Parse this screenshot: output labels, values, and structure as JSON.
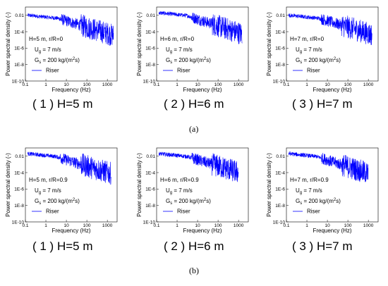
{
  "figure": {
    "part_a": "(a)",
    "part_b": "(b)"
  },
  "chart_data": [
    {
      "type": "line",
      "caption": "( 1 ) H=5 m",
      "xlabel": "Frequency (Hz)",
      "ylabel": "Power spectral density (-)",
      "xscale": "log",
      "yscale": "log",
      "xlim": [
        0.1,
        3000
      ],
      "ylim": [
        1e-10,
        0.1
      ],
      "yticks": [
        "0.01",
        "1E-4",
        "1E-6",
        "1E-8",
        "1E-10"
      ],
      "xticks": [
        "0.1",
        "1",
        "10",
        "100",
        "1000"
      ],
      "annotations": [
        "H=5 m, r/R=0",
        "U",
        "g",
        " = 7 m/s",
        "G",
        "s",
        " = 200 kg/(m",
        "2",
        "s)"
      ],
      "legend": "Riser",
      "series": [
        {
          "name": "Riser",
          "color": "#0000ff",
          "shape": {
            "f_low": [
              0.13,
              3
            ],
            "p_low": 0.01,
            "roll_off_hz": 4,
            "slope": -1.4,
            "p_end": 1e-07,
            "f_max": 2000
          }
        }
      ]
    },
    {
      "type": "line",
      "caption": "( 2 ) H=6 m",
      "xlabel": "Frequency (Hz)",
      "ylabel": "Power spectral density (-)",
      "xscale": "log",
      "yscale": "log",
      "xlim": [
        0.1,
        3000
      ],
      "ylim": [
        1e-10,
        0.1
      ],
      "yticks": [
        "0.01",
        "1E-4",
        "1E-6",
        "1E-8",
        "1E-10"
      ],
      "xticks": [
        "0.1",
        "1",
        "10",
        "100",
        "1000"
      ],
      "annotations": [
        "H=6 m, r/R=0",
        "U",
        "g",
        " = 7 m/s",
        "G",
        "s",
        " = 200 kg/(m",
        "2",
        "s)"
      ],
      "legend": "Riser",
      "series": [
        {
          "name": "Riser",
          "color": "#0000ff",
          "shape": {
            "f_low": [
              0.13,
              3
            ],
            "p_low": 0.02,
            "roll_off_hz": 3,
            "slope": -1.5,
            "p_end": 2e-07,
            "f_max": 1500
          }
        }
      ]
    },
    {
      "type": "line",
      "caption": "( 3 ) H=7 m",
      "xlabel": "Frequency (Hz)",
      "ylabel": "Power spectral density (-)",
      "xscale": "log",
      "yscale": "log",
      "xlim": [
        0.1,
        3000
      ],
      "ylim": [
        1e-10,
        0.1
      ],
      "yticks": [
        "0.01",
        "1E-4",
        "1E-6",
        "1E-8",
        "1E-10"
      ],
      "xticks": [
        "0.1",
        "1",
        "10",
        "100",
        "1000"
      ],
      "annotations": [
        "H=7 m, r/R=0",
        "U",
        "g",
        " = 7 m/s",
        "G",
        "s",
        " = 200 kg/(m",
        "2",
        "s)"
      ],
      "legend": "Riser",
      "series": [
        {
          "name": "Riser",
          "color": "#0000ff",
          "shape": {
            "f_low": [
              0.5,
              3
            ],
            "p_low": 0.01,
            "roll_off_hz": 4,
            "slope": -1.4,
            "p_end": 5e-07,
            "f_max": 1500
          }
        }
      ]
    },
    {
      "type": "line",
      "caption": "( 1 ) H=5 m",
      "xlabel": "Frequency (Hz)",
      "ylabel": "Power spectral density (-)",
      "xscale": "log",
      "yscale": "log",
      "xlim": [
        0.1,
        3000
      ],
      "ylim": [
        1e-10,
        0.1
      ],
      "yticks": [
        "0.01",
        "1E-4",
        "1E-6",
        "1E-8",
        "1E-10"
      ],
      "xticks": [
        "0.1",
        "1",
        "10",
        "100",
        "1000"
      ],
      "annotations": [
        "H=5 m, r/R=0.9",
        "U",
        "g",
        " = 7 m/s",
        "G",
        "s",
        " = 200 kg/(m",
        "2",
        "s)"
      ],
      "legend": "Riser",
      "series": [
        {
          "name": "Riser",
          "color": "#0000ff",
          "shape": {
            "f_low": [
              0.13,
              3
            ],
            "p_low": 0.02,
            "roll_off_hz": 3,
            "slope": -1.4,
            "p_end": 3e-07,
            "f_max": 1500
          }
        }
      ]
    },
    {
      "type": "line",
      "caption": "( 2 ) H=6 m",
      "xlabel": "Frequency (Hz)",
      "ylabel": "Power spectral density (-)",
      "xscale": "log",
      "yscale": "log",
      "xlim": [
        0.1,
        3000
      ],
      "ylim": [
        1e-10,
        0.1
      ],
      "yticks": [
        "0.01",
        "1E-4",
        "1E-6",
        "1E-8",
        "1E-10"
      ],
      "xticks": [
        "0.1",
        "1",
        "10",
        "100",
        "1000"
      ],
      "annotations": [
        "H=6 m, r/R=0.9",
        "U",
        "g",
        " = 7 m/s",
        "G",
        "s",
        " = 200 kg/(m",
        "2",
        "s)"
      ],
      "legend": "Riser",
      "series": [
        {
          "name": "Riser",
          "color": "#0000ff",
          "shape": {
            "f_low": [
              0.13,
              3
            ],
            "p_low": 0.02,
            "roll_off_hz": 3,
            "slope": -1.4,
            "p_end": 1e-06,
            "f_max": 1000
          }
        }
      ]
    },
    {
      "type": "line",
      "caption": "( 3 ) H=7 m",
      "xlabel": "Frequency (Hz)",
      "ylabel": "Power spectral density (-)",
      "xscale": "log",
      "yscale": "log",
      "xlim": [
        0.1,
        3000
      ],
      "ylim": [
        1e-10,
        0.1
      ],
      "yticks": [
        "0.01",
        "1E-4",
        "1E-6",
        "1E-8",
        "1E-10"
      ],
      "xticks": [
        "0.1",
        "1",
        "10",
        "100",
        "1000"
      ],
      "annotations": [
        "H=7 m, r/R=0.9",
        "U",
        "g",
        " = 7 m/s",
        "G",
        "s",
        " = 200 kg/(m",
        "2",
        "s)"
      ],
      "legend": "Riser",
      "series": [
        {
          "name": "Riser",
          "color": "#0000ff",
          "shape": {
            "f_low": [
              0.13,
              3
            ],
            "p_low": 0.02,
            "roll_off_hz": 3,
            "slope": -1.5,
            "p_end": 1e-06,
            "f_max": 1000
          }
        }
      ]
    }
  ]
}
